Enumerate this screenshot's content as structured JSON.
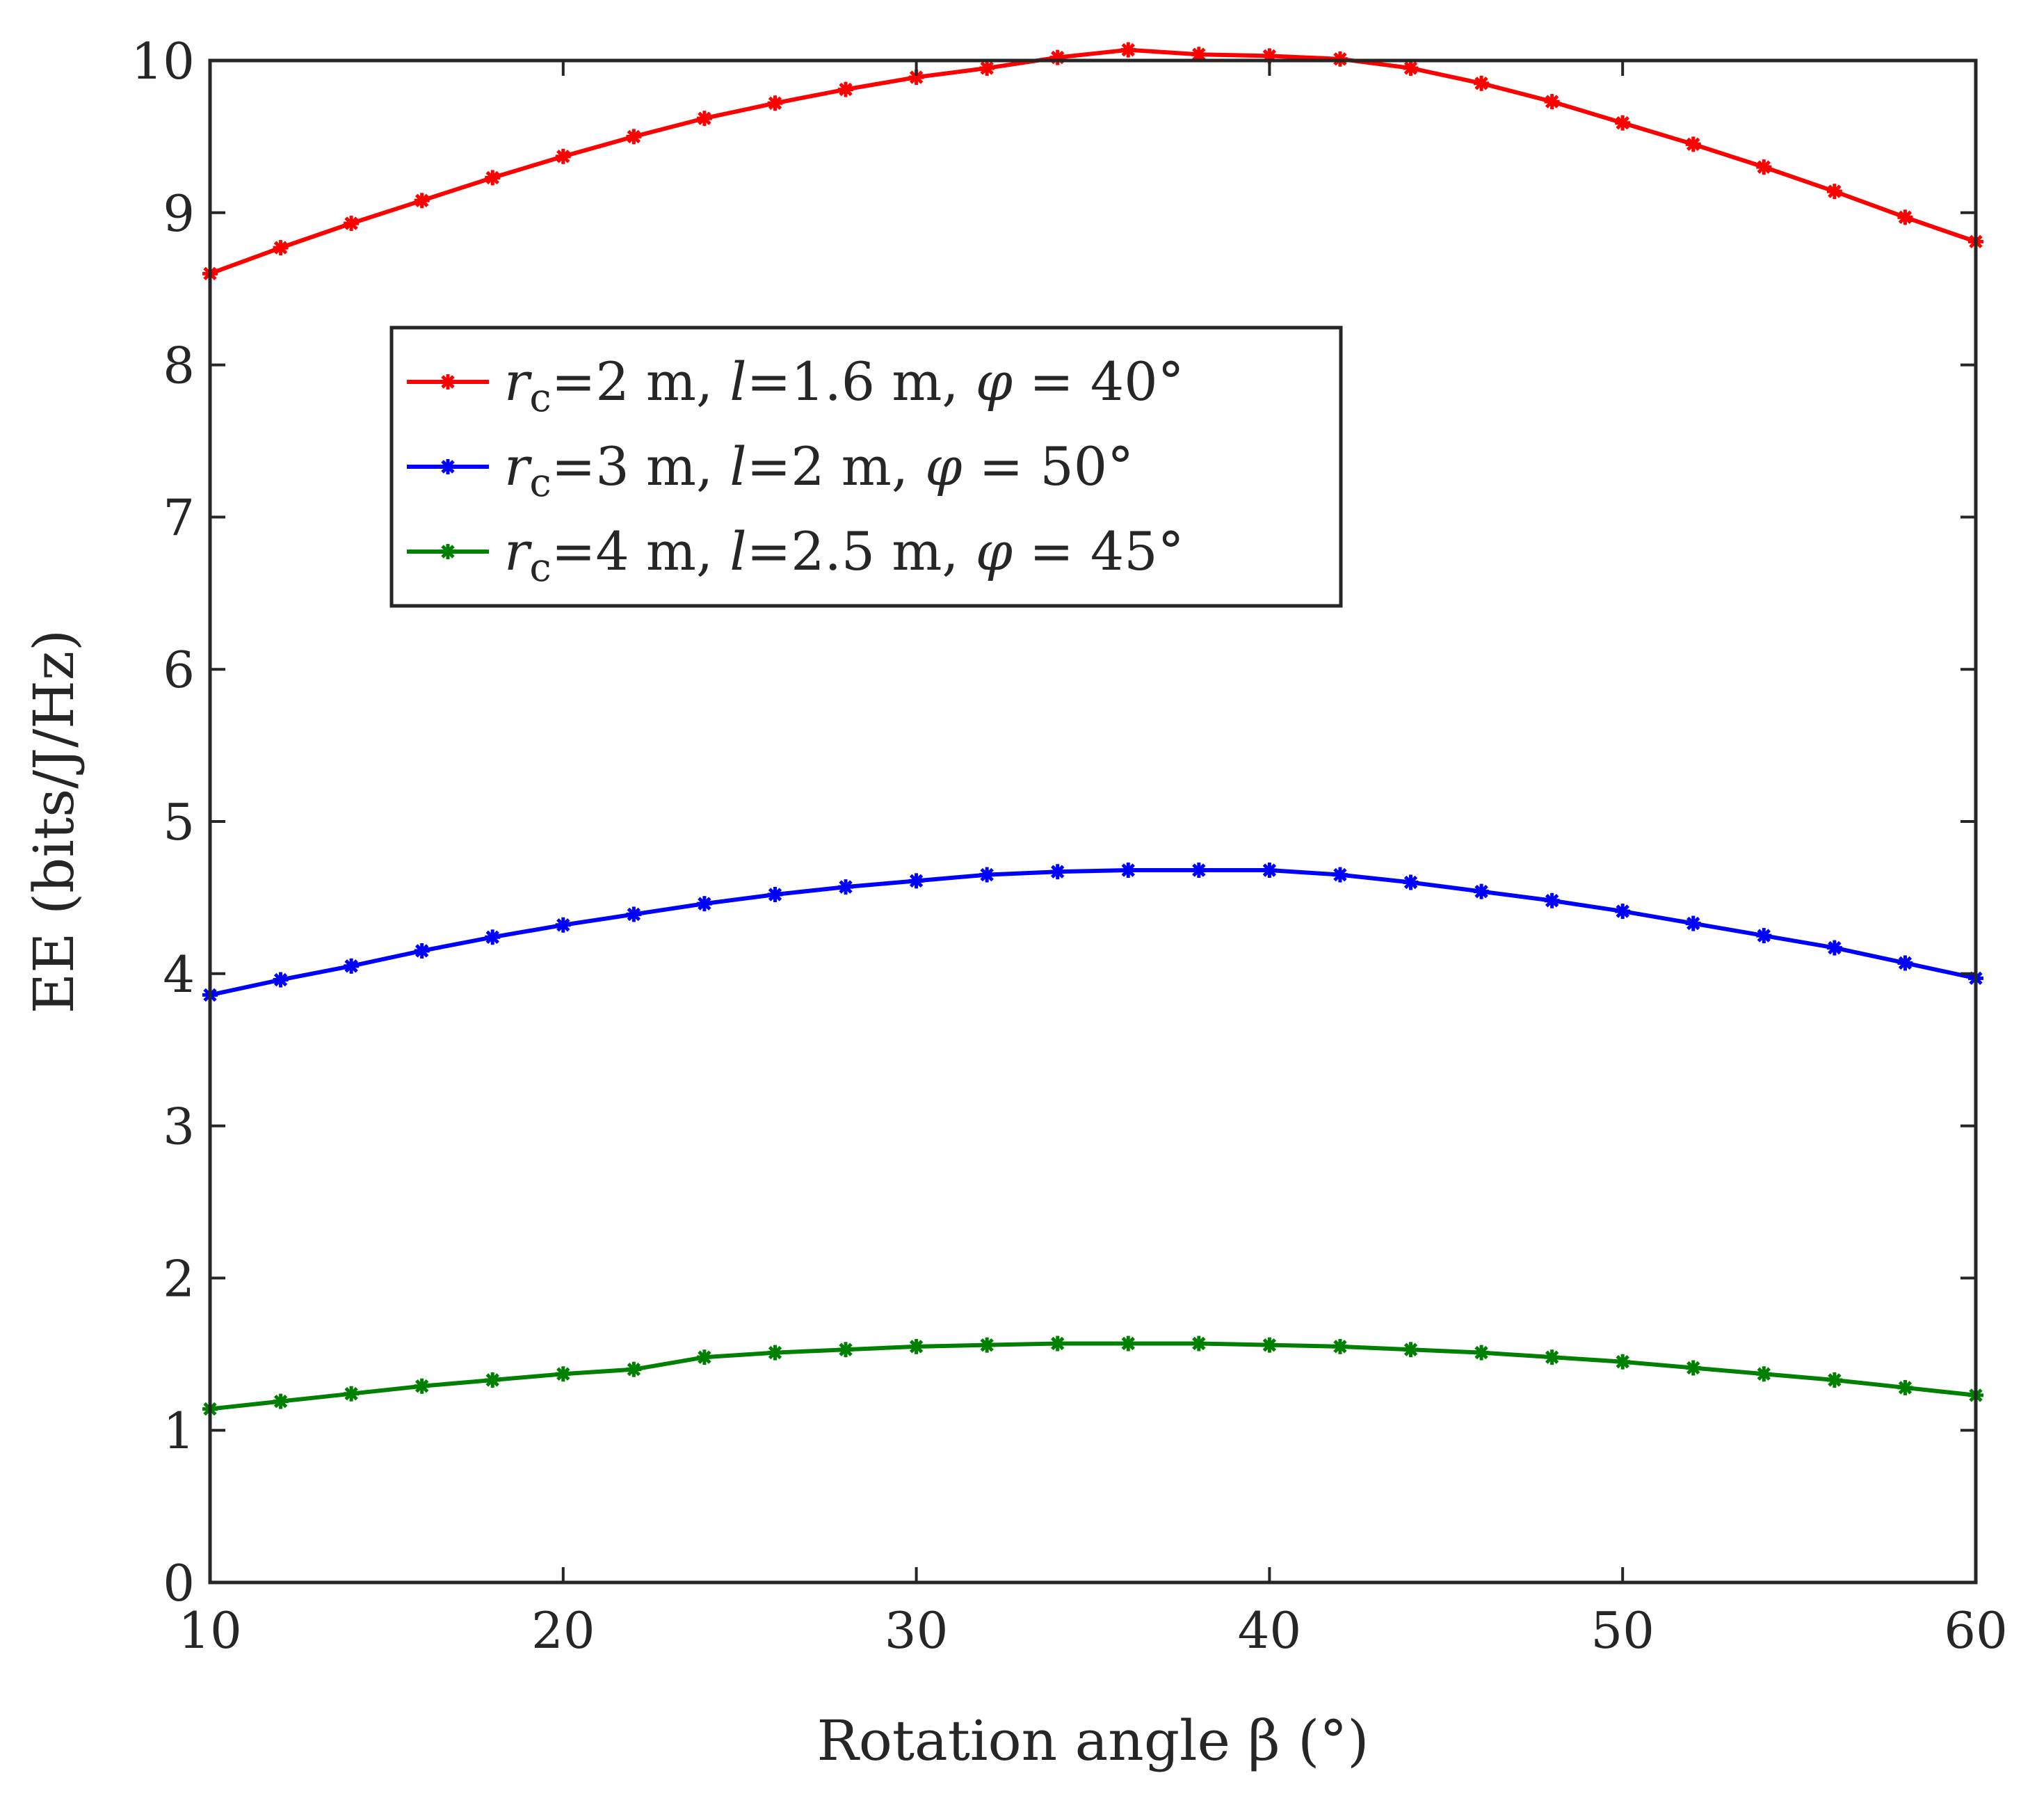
{
  "chart_data": {
    "type": "line",
    "title": "",
    "xlabel": "Rotation angle β (°)",
    "ylabel": "EE (bits/J/Hz)",
    "xlim": [
      10,
      60
    ],
    "ylim": [
      0,
      10
    ],
    "xticks": [
      10,
      20,
      30,
      40,
      50,
      60
    ],
    "yticks": [
      0,
      1,
      2,
      3,
      4,
      5,
      6,
      7,
      8,
      9,
      10
    ],
    "grid": false,
    "legend_position": "upper-left",
    "x": [
      10,
      12,
      14,
      16,
      18,
      20,
      22,
      24,
      26,
      28,
      30,
      32,
      34,
      36,
      38,
      40,
      42,
      44,
      46,
      48,
      50,
      52,
      54,
      56,
      58,
      60
    ],
    "series": [
      {
        "name": "rc=2 m, l=1.6 m, φ = 40°",
        "legend": {
          "r": "r",
          "sub": "c",
          "a": "=2 m, ",
          "l": "l",
          "b": "=1.6 m, ",
          "phi": "φ",
          "c": " = 40°"
        },
        "color": "#ff0000",
        "values": [
          8.6,
          8.77,
          8.93,
          9.08,
          9.23,
          9.37,
          9.5,
          9.62,
          9.72,
          9.81,
          9.89,
          9.95,
          10.02,
          10.07,
          10.04,
          10.03,
          10.01,
          9.95,
          9.85,
          9.73,
          9.59,
          9.45,
          9.3,
          9.14,
          8.97,
          8.81
        ]
      },
      {
        "name": "rc=3 m, l=2 m, φ = 50°",
        "legend": {
          "r": "r",
          "sub": "c",
          "a": "=3 m, ",
          "l": "l",
          "b": "=2 m, ",
          "phi": "φ",
          "c": " = 50°"
        },
        "color": "#0000ff",
        "values": [
          3.86,
          3.96,
          4.05,
          4.15,
          4.24,
          4.32,
          4.39,
          4.46,
          4.52,
          4.57,
          4.61,
          4.65,
          4.67,
          4.68,
          4.68,
          4.68,
          4.65,
          4.6,
          4.54,
          4.48,
          4.41,
          4.33,
          4.25,
          4.17,
          4.07,
          3.97
        ]
      },
      {
        "name": "rc=4 m, l=2.5 m, φ = 45°",
        "legend": {
          "r": "r",
          "sub": "c",
          "a": "=4 m, ",
          "l": "l",
          "b": "=2.5 m, ",
          "phi": "φ",
          "c": " = 45°"
        },
        "color": "#008000",
        "values": [
          1.14,
          1.19,
          1.24,
          1.29,
          1.33,
          1.37,
          1.4,
          1.48,
          1.51,
          1.53,
          1.55,
          1.56,
          1.57,
          1.57,
          1.57,
          1.56,
          1.55,
          1.53,
          1.51,
          1.48,
          1.45,
          1.41,
          1.37,
          1.33,
          1.28,
          1.23
        ]
      }
    ]
  }
}
